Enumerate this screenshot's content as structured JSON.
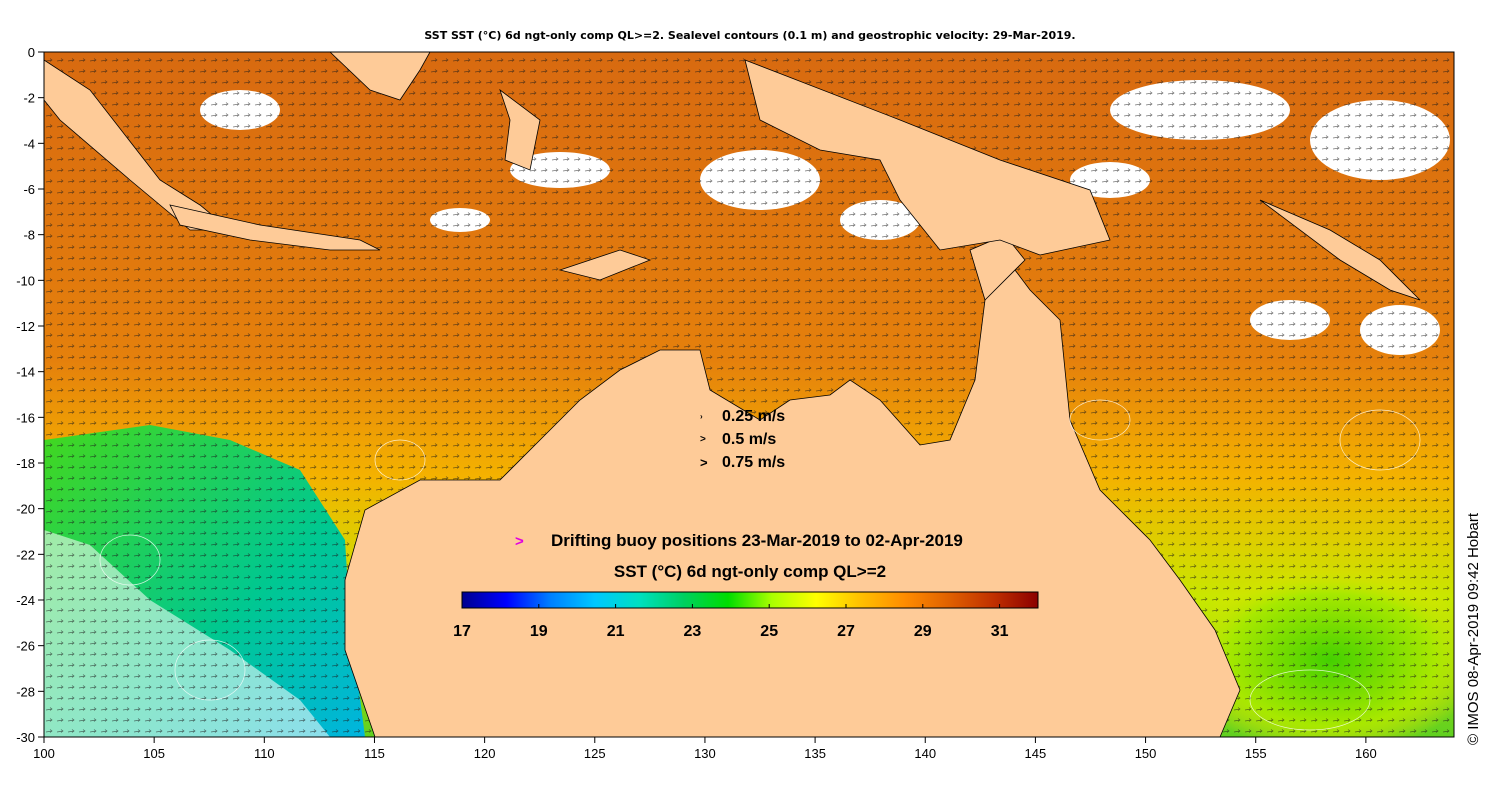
{
  "title": "SST SST (°C) 6d ngt-only comp QL>=2. Sealevel contours (0.1 m) and geostrophic velocity: 29-Mar-2019.",
  "credit": "© IMOS 08-Apr-2019 09:42 Hobart",
  "velocity_legend": [
    {
      "label": "0.25 m/s",
      "symbol": "›"
    },
    {
      "label": "0.5 m/s",
      "symbol": ">"
    },
    {
      "label": "0.75 m/s",
      "symbol": ">"
    }
  ],
  "buoy_legend": {
    "symbol": ">",
    "label": "Drifting buoy positions 23-Mar-2019 to 02-Apr-2019"
  },
  "colorbar": {
    "title": "SST (°C) 6d ngt-only comp QL>=2",
    "min": 17,
    "max": 32,
    "ticks": [
      "17",
      "19",
      "21",
      "23",
      "25",
      "27",
      "29",
      "31"
    ],
    "tick_values": [
      17,
      19,
      21,
      23,
      25,
      27,
      29,
      31
    ],
    "colors": [
      "#00008f",
      "#0000ff",
      "#0080ff",
      "#00c8ff",
      "#00e0c0",
      "#00d060",
      "#00dd00",
      "#aaff00",
      "#ffff00",
      "#ffc000",
      "#ff8c00",
      "#e06000",
      "#c03000",
      "#8b0000"
    ]
  },
  "axes": {
    "x_ticks": [
      "100",
      "105",
      "110",
      "115",
      "120",
      "125",
      "130",
      "135",
      "140",
      "145",
      "150",
      "155",
      "160"
    ],
    "x_values": [
      100,
      105,
      110,
      115,
      120,
      125,
      130,
      135,
      140,
      145,
      150,
      155,
      160
    ],
    "y_ticks": [
      "0",
      "-2",
      "-4",
      "-6",
      "-8",
      "-10",
      "-12",
      "-14",
      "-16",
      "-18",
      "-20",
      "-22",
      "-24",
      "-26",
      "-28",
      "-30"
    ],
    "y_values": [
      0,
      -2,
      -4,
      -6,
      -8,
      -10,
      -12,
      -14,
      -16,
      -18,
      -20,
      -22,
      -24,
      -26,
      -28,
      -30
    ],
    "lon_range": [
      100,
      164
    ],
    "lat_range": [
      -30,
      0
    ]
  },
  "colors": {
    "land": "#fecb98",
    "cloud": "#ffffff",
    "sea_warm": "#e07810"
  }
}
